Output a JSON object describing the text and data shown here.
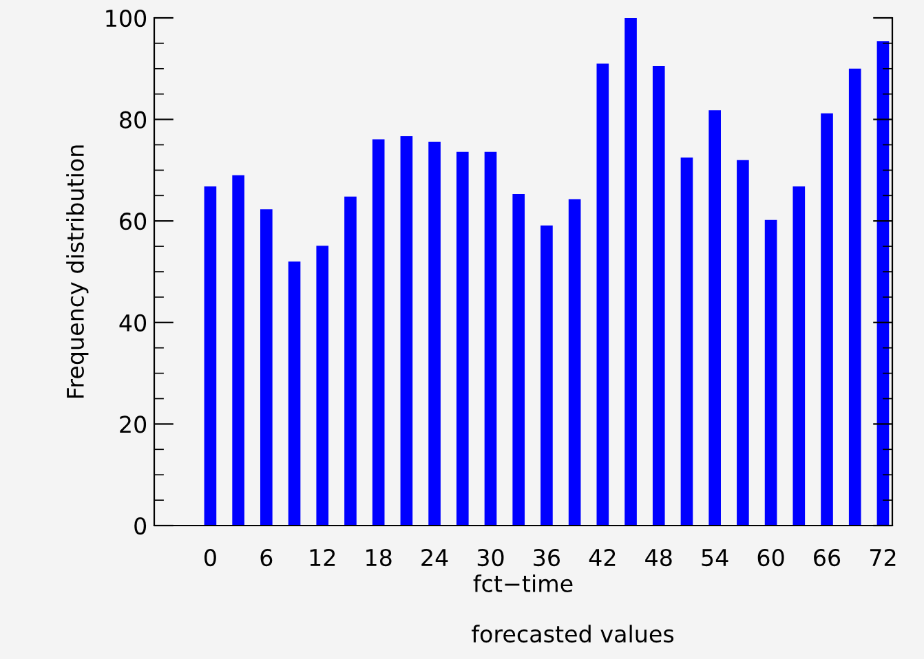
{
  "chart_data": {
    "type": "bar",
    "xlabel": "fct−time",
    "annotations": [
      "forecasted values"
    ],
    "ylabel": "Frequency distribution",
    "x": [
      0,
      3,
      6,
      9,
      12,
      15,
      18,
      21,
      24,
      27,
      30,
      33,
      36,
      39,
      42,
      45,
      48,
      51,
      54,
      57,
      60,
      63,
      66,
      69,
      72
    ],
    "values": [
      66.8,
      69.0,
      62.3,
      52.0,
      55.1,
      64.8,
      76.1,
      76.7,
      75.6,
      73.6,
      73.6,
      65.3,
      59.1,
      64.3,
      91.0,
      100,
      90.5,
      72.5,
      81.8,
      72.0,
      60.2,
      66.8,
      81.2,
      90.0,
      95.4
    ],
    "color": "#0000ff",
    "xlim": [
      -6,
      73
    ],
    "xticks": [
      0,
      6,
      12,
      18,
      24,
      30,
      36,
      42,
      48,
      54,
      60,
      66,
      72
    ],
    "ylim": [
      0,
      100
    ],
    "yticks": [
      0,
      20,
      40,
      60,
      80,
      100
    ],
    "grid": false,
    "legend": false
  }
}
